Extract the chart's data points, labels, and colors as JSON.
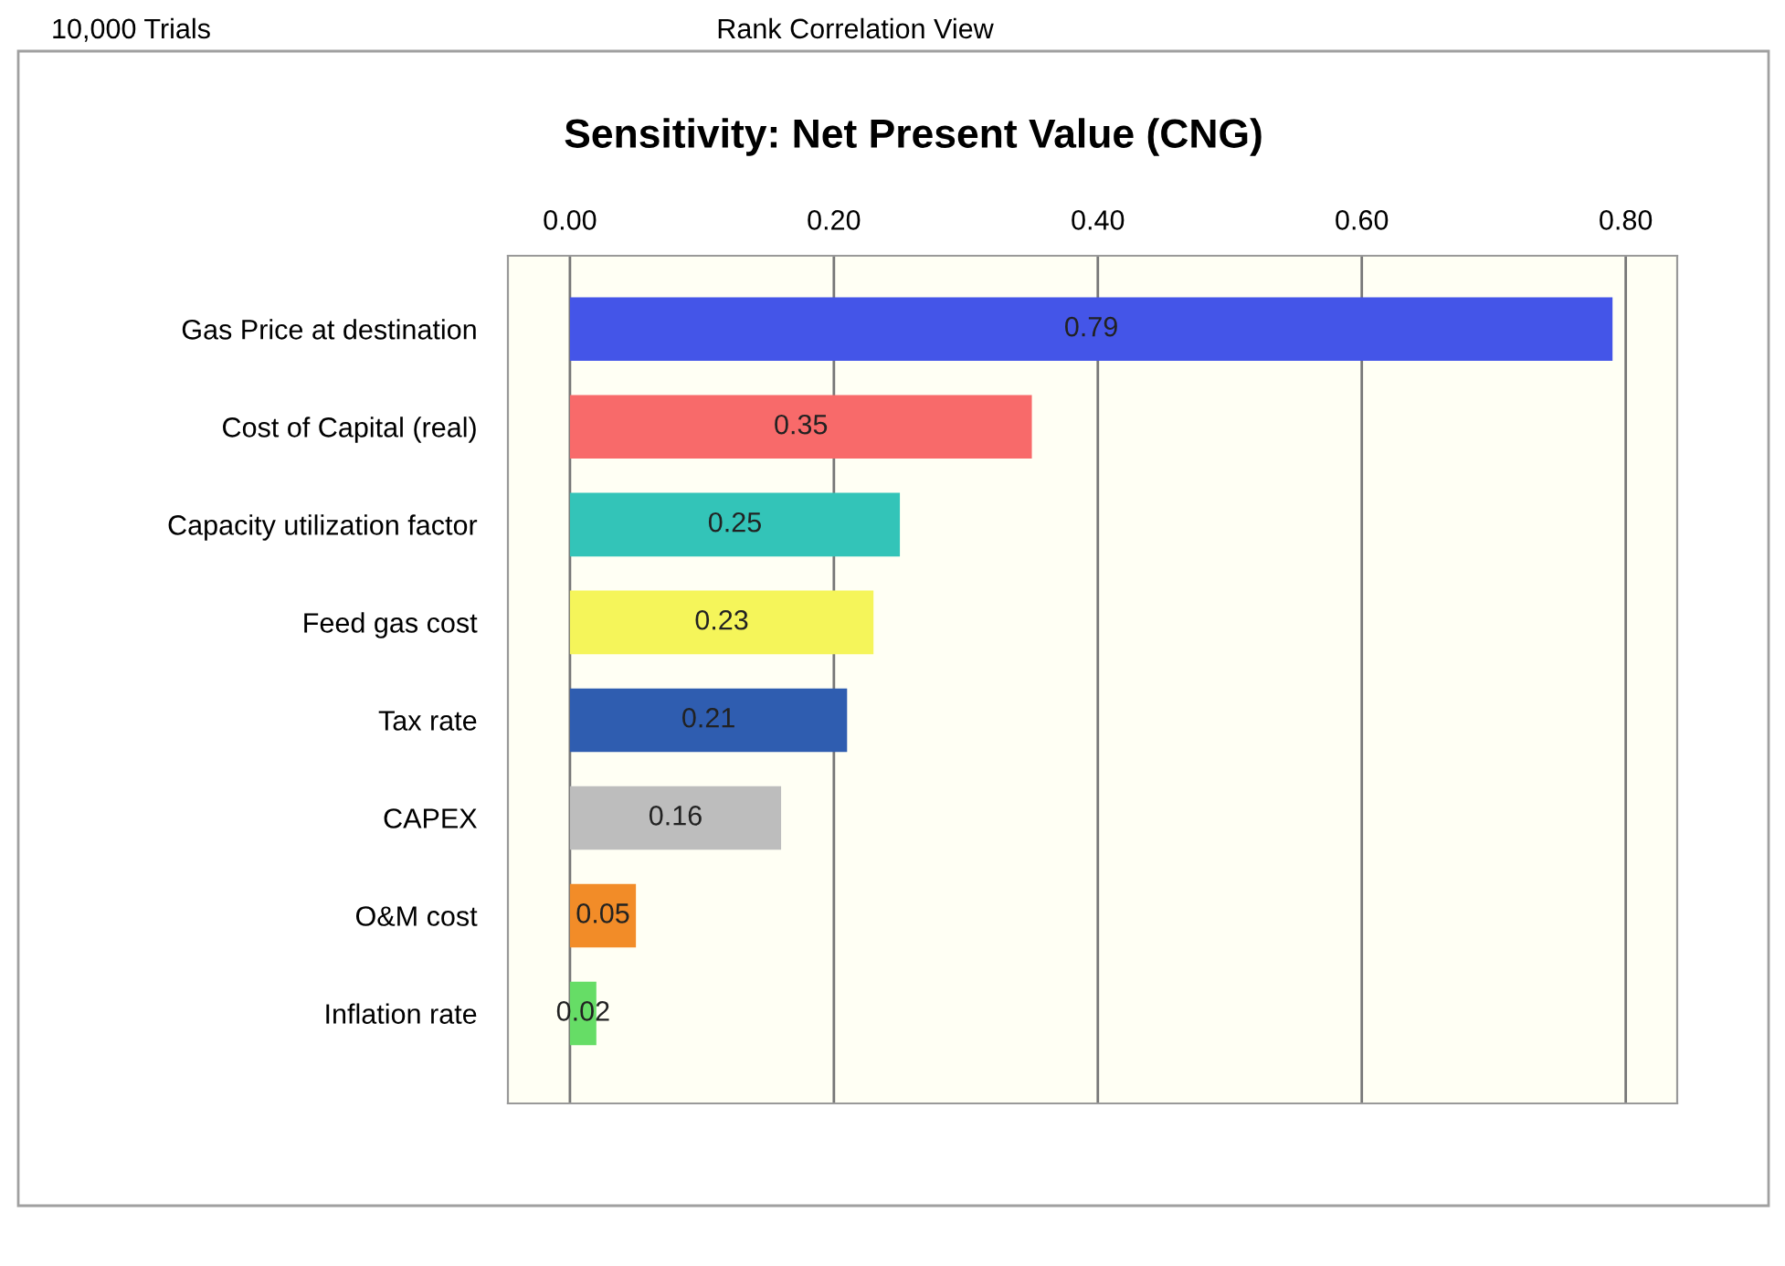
{
  "chart_data": {
    "type": "bar",
    "orientation": "horizontal",
    "title": "Sensitivity: Net Present Value (CNG)",
    "annotations": [
      "10,000 Trials",
      "Rank Correlation View"
    ],
    "categories": [
      "Gas Price at destination",
      "Cost of Capital (real)",
      "Capacity utilization factor",
      "Feed gas cost",
      "Tax rate",
      "CAPEX",
      "O&M cost",
      "Inflation rate"
    ],
    "values": [
      0.79,
      0.35,
      0.25,
      0.23,
      0.21,
      0.16,
      0.05,
      0.02
    ],
    "colors": [
      "#4455e8",
      "#f86a6a",
      "#33c4b8",
      "#f5f55a",
      "#2f5db0",
      "#bdbdbd",
      "#f28c28",
      "#66dd66"
    ],
    "xlim": [
      -0.047,
      0.839
    ],
    "xticks": [
      {
        "value": 0,
        "label": "0.00"
      },
      {
        "value": 0.2,
        "label": "0.20"
      },
      {
        "value": 0.4,
        "label": "0.40"
      },
      {
        "value": 0.6,
        "label": "0.60"
      },
      {
        "value": 0.8,
        "label": "0.80"
      }
    ],
    "grid": "x",
    "data_labels": true
  }
}
